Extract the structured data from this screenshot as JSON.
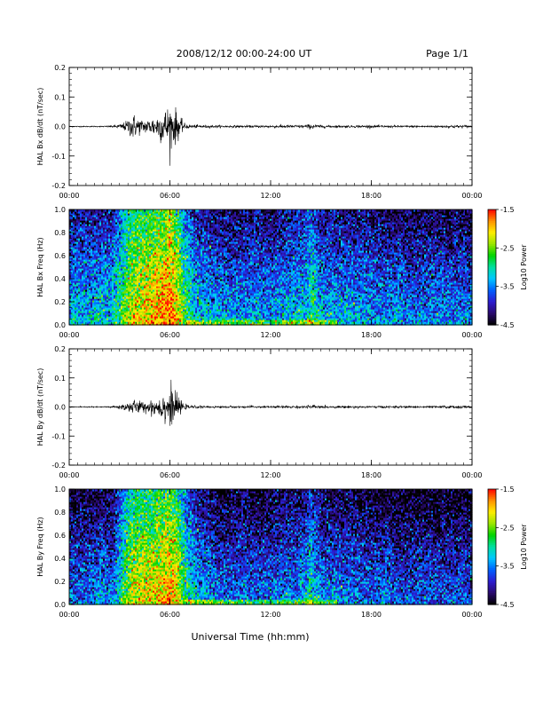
{
  "header": {
    "title": "2008/12/12  00:00-24:00 UT",
    "page": "Page 1/1"
  },
  "footer": {
    "xlabel": "Universal Time (hh:mm)"
  },
  "colors": {
    "trace": "#000000",
    "colormap": [
      "#000000",
      "#2a0a6e",
      "#2d1bd0",
      "#0060ff",
      "#00c8ff",
      "#00e0a0",
      "#00d400",
      "#9be600",
      "#ffee00",
      "#ff9000",
      "#ff0000"
    ]
  },
  "chart_data": [
    {
      "type": "line",
      "id": "bx-dbdt",
      "ylabel": "HAL Bx dB/dt (nT/sec)",
      "ylim": [
        -0.2,
        0.2
      ],
      "yticks": [
        -0.2,
        -0.1,
        0.0,
        0.1,
        0.2
      ],
      "ytick_labels": [
        "-0.2",
        "-0.1",
        "0.0",
        "0.1",
        "0.2"
      ],
      "xlim": [
        0,
        24
      ],
      "xticks": [
        0,
        6,
        12,
        18,
        24
      ],
      "xtick_labels": [
        "00:00",
        "06:00",
        "12:00",
        "18:00",
        "00:00"
      ],
      "series": [
        {
          "x": [
            0,
            1,
            2,
            2.6,
            3.0,
            3.4,
            3.8,
            4.0,
            4.4,
            4.8,
            5.2,
            5.5,
            5.8,
            6.0,
            6.2,
            6.4,
            6.6,
            6.8,
            7.0,
            7.5,
            8.0,
            9.0,
            10.0,
            11.0,
            12.0,
            13.0,
            14.0,
            14.5,
            15.0,
            16.0,
            17.0,
            18.0,
            19.0,
            20.0,
            21.0,
            22.0,
            23.0,
            24.0
          ],
          "amplitude": [
            0.002,
            0.002,
            0.002,
            0.004,
            0.008,
            0.02,
            0.05,
            0.035,
            0.025,
            0.03,
            0.045,
            0.06,
            0.07,
            0.085,
            0.075,
            0.06,
            0.035,
            0.015,
            0.008,
            0.006,
            0.005,
            0.004,
            0.004,
            0.004,
            0.005,
            0.006,
            0.006,
            0.01,
            0.005,
            0.004,
            0.004,
            0.005,
            0.004,
            0.004,
            0.004,
            0.004,
            0.006,
            0.004
          ]
        }
      ]
    },
    {
      "type": "heatmap",
      "id": "bx-spec",
      "ylabel": "HAL Bx Freq (Hz)",
      "ylim": [
        0.0,
        1.0
      ],
      "yticks": [
        0.0,
        0.2,
        0.4,
        0.6,
        0.8,
        1.0
      ],
      "ytick_labels": [
        "0.0",
        "0.2",
        "0.4",
        "0.6",
        "0.8",
        "1.0"
      ],
      "xlim": [
        0,
        24
      ],
      "xticks": [
        0,
        6,
        12,
        18,
        24
      ],
      "xtick_labels": [
        "00:00",
        "06:00",
        "12:00",
        "18:00",
        "00:00"
      ],
      "colorbar": {
        "label": "Log10 Power",
        "range": [
          -4.5,
          -1.5
        ],
        "ticks": [
          -1.5,
          -2.5,
          -3.5,
          -4.5
        ],
        "tick_labels": [
          "-1.5",
          "-2.5",
          "-3.5",
          "-4.5"
        ]
      },
      "time_profile": {
        "x": [
          0,
          2.6,
          3.0,
          3.6,
          4.0,
          4.8,
          5.5,
          6.0,
          6.5,
          7.0,
          7.6,
          9.0,
          12.0,
          14.0,
          14.4,
          15.0,
          18.0,
          20.0,
          22.0,
          24.0
        ],
        "level": [
          -3.6,
          -3.5,
          -3.1,
          -2.5,
          -2.4,
          -2.3,
          -2.1,
          -1.9,
          -2.4,
          -3.1,
          -3.5,
          -3.7,
          -3.7,
          -3.5,
          -3.1,
          -3.6,
          -3.7,
          -3.8,
          -3.8,
          -3.8
        ]
      }
    },
    {
      "type": "line",
      "id": "by-dbdt",
      "ylabel": "HAL By dB/dt (nT/sec)",
      "ylim": [
        -0.2,
        0.2
      ],
      "yticks": [
        -0.2,
        -0.1,
        0.0,
        0.1,
        0.2
      ],
      "ytick_labels": [
        "-0.2",
        "-0.1",
        "0.0",
        "0.1",
        "0.2"
      ],
      "xlim": [
        0,
        24
      ],
      "xticks": [
        0,
        6,
        12,
        18,
        24
      ],
      "xtick_labels": [
        "00:00",
        "06:00",
        "12:00",
        "18:00",
        "00:00"
      ],
      "series": [
        {
          "x": [
            0,
            1,
            2,
            2.6,
            3.0,
            3.4,
            3.8,
            4.0,
            4.4,
            4.8,
            5.2,
            5.5,
            5.8,
            6.0,
            6.2,
            6.4,
            6.6,
            6.8,
            7.0,
            7.5,
            8.0,
            9.0,
            10.0,
            11.0,
            12.0,
            13.0,
            14.0,
            14.5,
            15.0,
            16.0,
            17.0,
            18.0,
            19.0,
            20.0,
            21.0,
            22.0,
            23.0,
            24.0
          ],
          "amplitude": [
            0.002,
            0.002,
            0.002,
            0.004,
            0.008,
            0.015,
            0.03,
            0.025,
            0.02,
            0.025,
            0.035,
            0.05,
            0.06,
            0.075,
            0.06,
            0.045,
            0.03,
            0.012,
            0.007,
            0.005,
            0.004,
            0.004,
            0.004,
            0.004,
            0.004,
            0.005,
            0.005,
            0.008,
            0.004,
            0.004,
            0.004,
            0.004,
            0.004,
            0.004,
            0.004,
            0.004,
            0.006,
            0.004
          ]
        }
      ]
    },
    {
      "type": "heatmap",
      "id": "by-spec",
      "ylabel": "HAL By Freq (Hz)",
      "ylim": [
        0.0,
        1.0
      ],
      "yticks": [
        0.0,
        0.2,
        0.4,
        0.6,
        0.8,
        1.0
      ],
      "ytick_labels": [
        "0.0",
        "0.2",
        "0.4",
        "0.6",
        "0.8",
        "1.0"
      ],
      "xlim": [
        0,
        24
      ],
      "xticks": [
        0,
        6,
        12,
        18,
        24
      ],
      "xtick_labels": [
        "00:00",
        "06:00",
        "12:00",
        "18:00",
        "00:00"
      ],
      "colorbar": {
        "label": "Log10 Power",
        "range": [
          -4.5,
          -1.5
        ],
        "ticks": [
          -1.5,
          -2.5,
          -3.5,
          -4.5
        ],
        "tick_labels": [
          "-1.5",
          "-2.5",
          "-3.5",
          "-4.5"
        ]
      },
      "time_profile": {
        "x": [
          0,
          2.6,
          3.0,
          3.6,
          4.0,
          4.8,
          5.5,
          6.0,
          6.5,
          7.0,
          7.6,
          9.0,
          12.0,
          14.0,
          14.4,
          15.0,
          18.0,
          20.0,
          22.0,
          24.0
        ],
        "level": [
          -3.9,
          -3.8,
          -3.3,
          -2.6,
          -2.5,
          -2.4,
          -2.3,
          -2.1,
          -2.5,
          -3.2,
          -3.6,
          -3.9,
          -3.9,
          -3.7,
          -3.3,
          -3.8,
          -3.9,
          -4.0,
          -4.0,
          -4.0
        ]
      }
    }
  ]
}
